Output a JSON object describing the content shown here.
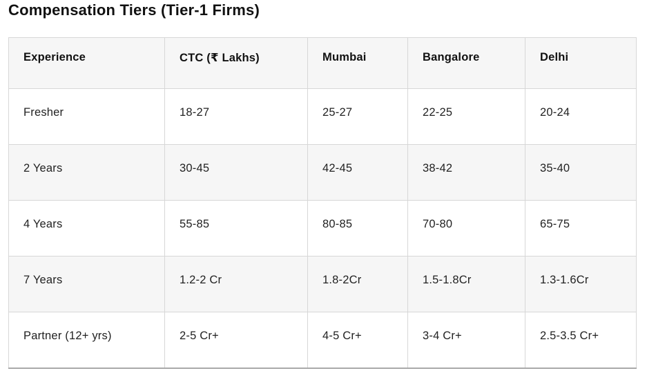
{
  "page": {
    "title": "Compensation Tiers (Tier-1 Firms)"
  },
  "table": {
    "columns": {
      "experience": "Experience",
      "ctc": "CTC (₹ Lakhs)",
      "mumbai": "Mumbai",
      "bangalore": "Bangalore",
      "delhi": "Delhi"
    },
    "rows": [
      {
        "experience": "Fresher",
        "ctc": "18-27",
        "mumbai": "25-27",
        "bangalore": "22-25",
        "delhi": "20-24"
      },
      {
        "experience": "2 Years",
        "ctc": "30-45",
        "mumbai": "42-45",
        "bangalore": "38-42",
        "delhi": "35-40"
      },
      {
        "experience": "4 Years",
        "ctc": "55-85",
        "mumbai": "80-85",
        "bangalore": "70-80",
        "delhi": "65-75"
      },
      {
        "experience": "7 Years",
        "ctc": "1.2-2 Cr",
        "mumbai": "1.8-2Cr",
        "bangalore": "1.5-1.8Cr",
        "delhi": "1.3-1.6Cr"
      },
      {
        "experience": "Partner (12+ yrs)",
        "ctc": "2-5 Cr+",
        "mumbai": "4-5 Cr+",
        "bangalore": "3-4 Cr+",
        "delhi": "2.5-3.5 Cr+"
      }
    ],
    "colors": {
      "header_bg": "#f6f6f6",
      "stripe_bg": "#f6f6f6",
      "row_bg": "#ffffff",
      "border": "#d7d7d7",
      "bottom_border": "#a9a9a9",
      "text": "#222222",
      "heading_text": "#111111"
    }
  }
}
